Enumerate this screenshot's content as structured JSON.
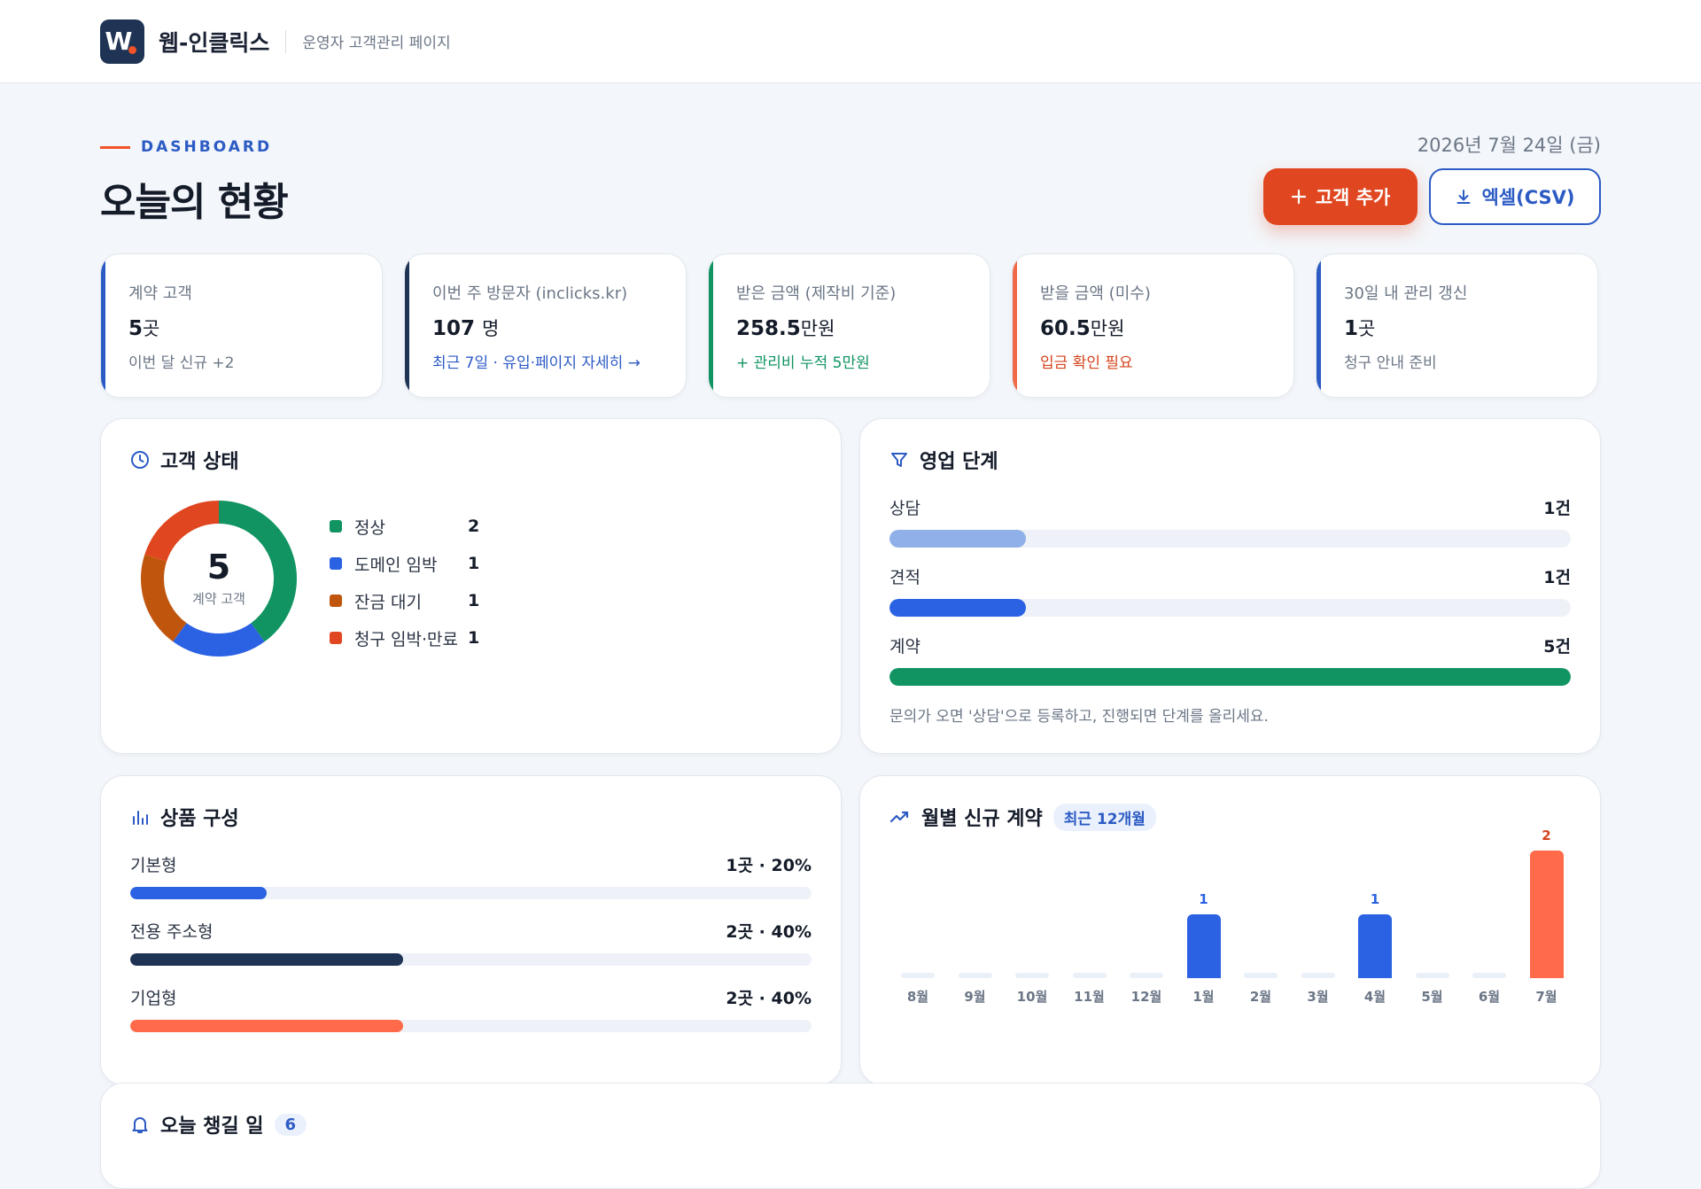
{
  "header": {
    "logo_letter": "W",
    "brand": "웹-인클릭스",
    "subtitle": "운영자 고객관리 페이지"
  },
  "page": {
    "eyebrow": "DASHBOARD",
    "title": "오늘의 현황",
    "date": "2026년 7월 24일 (금)",
    "add_button": "고객 추가",
    "csv_button": "엑셀(CSV)"
  },
  "kpis": [
    {
      "label": "계약 고객",
      "value": "5",
      "unit": "곳",
      "note": "이번 달 신규 +2",
      "accent": "#2c5bc4",
      "note_color": "#6b7686"
    },
    {
      "label": "이번 주 방문자 (inclicks.kr)",
      "value": "107",
      "unit": "명",
      "note": "최근 7일 · 유입·페이지 자세히 →",
      "accent": "#1f3354",
      "note_color": "#2c5bc4"
    },
    {
      "label": "받은 금액 (제작비 기준)",
      "value": "258.5",
      "unit": "만원",
      "note": "+ 관리비 누적 5만원",
      "accent": "#119462",
      "note_color": "#119462"
    },
    {
      "label": "받을 금액 (미수)",
      "value": "60.5",
      "unit": "만원",
      "note": "입금 확인 필요",
      "accent": "#f06a4a",
      "note_color": "#d4431c"
    },
    {
      "label": "30일 내 관리 갱신",
      "value": "1",
      "unit": "곳",
      "note": "청구 안내 준비",
      "accent": "#2c5bc4",
      "note_color": "#6b7686"
    }
  ],
  "status_panel": {
    "title": "고객 상태",
    "total": "5",
    "total_label": "계약 고객",
    "items": [
      {
        "label": "정상",
        "count": "2",
        "value": 2,
        "color": "#119462"
      },
      {
        "label": "도메인 임박",
        "count": "1",
        "value": 1,
        "color": "#2b62e3"
      },
      {
        "label": "잔금 대기",
        "count": "1",
        "value": 1,
        "color": "#c0560e"
      },
      {
        "label": "청구 임박·만료",
        "count": "1",
        "value": 1,
        "color": "#e0461f"
      }
    ]
  },
  "pipeline_panel": {
    "title": "영업 단계",
    "stages": [
      {
        "label": "상담",
        "count": "1건",
        "value": 1,
        "color": "#8fb0e8"
      },
      {
        "label": "견적",
        "count": "1건",
        "value": 1,
        "color": "#2b62e3"
      },
      {
        "label": "계약",
        "count": "5건",
        "value": 5,
        "color": "#119462"
      }
    ],
    "max": 5,
    "hint": "문의가 오면 '상담'으로 등록하고, 진행되면 단계를 올리세요."
  },
  "product_panel": {
    "title": "상품 구성",
    "items": [
      {
        "label": "기본형",
        "stat": "1곳 · 20%",
        "share": 0.2,
        "color": "#2b62e3"
      },
      {
        "label": "전용 주소형",
        "stat": "2곳 · 40%",
        "share": 0.4,
        "color": "#1f3354"
      },
      {
        "label": "기업형",
        "stat": "2곳 · 40%",
        "share": 0.4,
        "color": "#ff6b4a"
      }
    ]
  },
  "monthly_panel": {
    "title": "월별 신규 계약",
    "badge": "최근 12개월"
  },
  "chart_data": {
    "type": "bar",
    "categories": [
      "8월",
      "9월",
      "10월",
      "11월",
      "12월",
      "1월",
      "2월",
      "3월",
      "4월",
      "5월",
      "6월",
      "7월"
    ],
    "values": [
      0,
      0,
      0,
      0,
      0,
      1,
      0,
      0,
      1,
      0,
      0,
      2
    ],
    "highlight_index": 11,
    "colors": {
      "normal": "#2b62e3",
      "current": "#ff6b4a",
      "current_label": "#d4431c"
    },
    "ylim": [
      0,
      2
    ]
  },
  "todo_panel": {
    "title": "오늘 챙길 일",
    "count": "6"
  }
}
